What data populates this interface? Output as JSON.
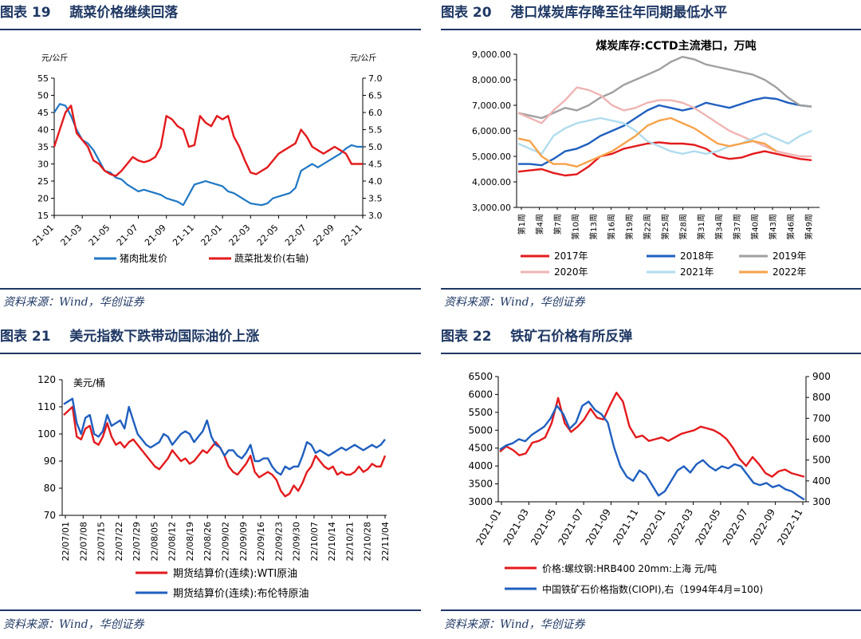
{
  "panels": [
    {
      "figure_label": "图表 19",
      "title": "蔬菜价格继续回落",
      "source": "资料来源：Wind，华创证券"
    },
    {
      "figure_label": "图表 20",
      "title": "港口煤炭库存降至往年同期最低水平",
      "source": "资料来源：Wind，华创证券"
    },
    {
      "figure_label": "图表 21",
      "title": "美元指数下跌带动国际油价上涨",
      "source": "资料来源：Wind，华创证券"
    },
    {
      "figure_label": "图表 22",
      "title": "铁矿石价格有所反弹",
      "source": "资料来源：Wind，华创证券"
    }
  ],
  "chart_data": [
    {
      "type": "line",
      "title": "",
      "ylabel_left": "元/公斤",
      "ylabel_right": "元/公斤",
      "ylim_left": [
        15,
        55
      ],
      "ylim_right": [
        3.0,
        7.0
      ],
      "yticks_left": [
        15,
        20,
        25,
        30,
        35,
        40,
        45,
        50,
        55
      ],
      "yticks_right": [
        "3.0",
        "3.5",
        "4.0",
        "4.5",
        "5.0",
        "5.5",
        "6.0",
        "6.5",
        "7.0"
      ],
      "xticks": [
        "21-01",
        "21-03",
        "21-05",
        "21-07",
        "21-09",
        "21-11",
        "22-01",
        "22-03",
        "22-05",
        "22-07",
        "22-09",
        "22-11"
      ],
      "series": [
        {
          "name": "猪肉批发价",
          "axis": "left",
          "color": "#1f77c4",
          "values": [
            45,
            47.5,
            47,
            44,
            40,
            37,
            36,
            34,
            31,
            28,
            27.5,
            26,
            25.5,
            24,
            23,
            22,
            22.5,
            22,
            21.5,
            21,
            20,
            19.5,
            19,
            18,
            21,
            24,
            24.5,
            25,
            24.5,
            24,
            23.5,
            22,
            21.5,
            20.5,
            19.5,
            18.5,
            18.2,
            18,
            18.5,
            20,
            20.5,
            21,
            21.5,
            23,
            28,
            29,
            30,
            29,
            30,
            31,
            32,
            33,
            34.5,
            35.5,
            35,
            35
          ]
        },
        {
          "name": "蔬菜批发价(右轴)",
          "axis": "right",
          "color": "#e31a1c",
          "values": [
            5.0,
            5.5,
            6.0,
            6.2,
            5.4,
            5.2,
            5.0,
            4.6,
            4.5,
            4.3,
            4.2,
            4.15,
            4.3,
            4.5,
            4.7,
            4.6,
            4.55,
            4.6,
            4.7,
            5.0,
            5.9,
            5.8,
            5.6,
            5.5,
            5.0,
            5.05,
            5.9,
            5.7,
            5.6,
            5.9,
            5.8,
            5.9,
            5.3,
            5.0,
            4.6,
            4.25,
            4.2,
            4.3,
            4.4,
            4.6,
            4.8,
            4.9,
            5.0,
            5.1,
            5.5,
            5.3,
            5.0,
            4.9,
            4.8,
            4.9,
            5.0,
            4.9,
            4.8,
            4.5,
            4.5,
            4.5
          ]
        }
      ],
      "legend": [
        "猪肉批发价",
        "蔬菜批发价(右轴)"
      ]
    },
    {
      "type": "line",
      "title": "煤炭库存:CCTD主流港口，万吨",
      "ylim": [
        3000,
        9000
      ],
      "yticks": [
        "3,000.00",
        "4,000.00",
        "5,000.00",
        "6,000.00",
        "7,000.00",
        "8,000.00",
        "9,000.00"
      ],
      "xticks": [
        "第1周",
        "第4周",
        "第7周",
        "第10周",
        "第13周",
        "第16周",
        "第19周",
        "第22周",
        "第25周",
        "第28周",
        "第31周",
        "第34周",
        "第37周",
        "第40周",
        "第43周",
        "第46周",
        "第49周"
      ],
      "series": [
        {
          "name": "2017年",
          "color": "#e31a1c",
          "values": [
            4400,
            4450,
            4500,
            4350,
            4250,
            4300,
            4600,
            5000,
            5100,
            5300,
            5400,
            5500,
            5550,
            5500,
            5500,
            5450,
            5300,
            5000,
            4900,
            4950,
            5100,
            5200,
            5100,
            5000,
            4900,
            4850
          ]
        },
        {
          "name": "2018年",
          "color": "#1f5fbf",
          "values": [
            4700,
            4700,
            4650,
            4900,
            5200,
            5300,
            5500,
            5800,
            6000,
            6200,
            6500,
            6800,
            7000,
            6900,
            6800,
            6900,
            7100,
            7000,
            6900,
            7050,
            7200,
            7300,
            7250,
            7100,
            7000,
            6950
          ]
        },
        {
          "name": "2019年",
          "color": "#a0a0a0",
          "values": [
            6700,
            6600,
            6500,
            6700,
            6900,
            6800,
            7000,
            7300,
            7500,
            7800,
            8000,
            8200,
            8400,
            8700,
            8900,
            8800,
            8600,
            8500,
            8400,
            8300,
            8200,
            8000,
            7700,
            7300,
            7000,
            6950
          ]
        },
        {
          "name": "2020年",
          "color": "#f0b4b4",
          "values": [
            6700,
            6500,
            6300,
            6800,
            7200,
            7700,
            7600,
            7400,
            7000,
            6800,
            6900,
            7100,
            7200,
            7200,
            7100,
            6900,
            6600,
            6300,
            6000,
            5800,
            5600,
            5400,
            5200,
            5100,
            5000,
            5000
          ]
        },
        {
          "name": "2021年",
          "color": "#b0dcee",
          "values": [
            5500,
            5300,
            5100,
            5800,
            6100,
            6300,
            6400,
            6500,
            6400,
            6300,
            6000,
            5600,
            5400,
            5200,
            5100,
            5200,
            5100,
            5200,
            5400,
            5500,
            5700,
            5900,
            5700,
            5500,
            5800,
            6000
          ]
        },
        {
          "name": "2022年",
          "color": "#f7a24a",
          "values": [
            5700,
            5600,
            5000,
            4700,
            4700,
            4600,
            4800,
            5000,
            5200,
            5500,
            5800,
            6200,
            6400,
            6500,
            6300,
            6100,
            5800,
            5500,
            5400,
            5500,
            5600,
            5500,
            5200
          ]
        }
      ],
      "legend": [
        "2017年",
        "2018年",
        "2019年",
        "2020年",
        "2021年",
        "2022年"
      ]
    },
    {
      "type": "line",
      "title": "",
      "ylabel": "美元/桶",
      "ylim": [
        70,
        120
      ],
      "yticks": [
        70,
        80,
        90,
        100,
        110,
        120
      ],
      "xticks": [
        "22/07/01",
        "22/07/08",
        "22/07/15",
        "22/07/22",
        "22/07/29",
        "22/08/05",
        "22/08/12",
        "22/08/19",
        "22/08/26",
        "22/09/02",
        "22/09/09",
        "22/09/16",
        "22/09/23",
        "22/09/30",
        "22/10/07",
        "22/10/14",
        "22/10/21",
        "22/10/28",
        "22/11/04"
      ],
      "series": [
        {
          "name": "期货结算价(连续):WTI原油",
          "color": "#e31a1c",
          "values": [
            107,
            108.5,
            110,
            99,
            98,
            102,
            103,
            97,
            96,
            99,
            104,
            99,
            96,
            97,
            95,
            97,
            98,
            96,
            94,
            92,
            90,
            88,
            87,
            89,
            91,
            94,
            92,
            90,
            91,
            89,
            90,
            92,
            94,
            93,
            95,
            97,
            95,
            92,
            88,
            86,
            85,
            87,
            89,
            92,
            86,
            84,
            85,
            86,
            85,
            83,
            79,
            77,
            78,
            81,
            79,
            82,
            86,
            88,
            92,
            90,
            88,
            87,
            88,
            85,
            86,
            85,
            85,
            86,
            88,
            86,
            87,
            89,
            88,
            88,
            92
          ]
        },
        {
          "name": "期货结算价(连续):布伦特原油",
          "color": "#1f5fbf",
          "values": [
            111,
            112,
            113,
            104,
            100,
            106,
            107,
            100,
            99,
            101,
            107,
            103,
            104,
            105,
            102,
            110,
            105,
            100,
            98,
            96,
            95,
            96,
            97,
            100,
            99,
            96,
            98,
            100,
            101,
            100,
            97,
            99,
            101,
            105,
            99,
            96,
            95,
            92,
            94,
            94,
            92,
            91,
            93,
            96,
            90,
            90,
            91,
            91,
            88,
            86,
            85,
            88,
            87,
            88,
            88,
            92,
            97,
            96,
            93,
            94,
            93,
            92,
            93,
            94,
            95,
            94,
            95,
            96,
            95,
            94,
            95,
            96,
            95,
            96,
            98
          ]
        }
      ],
      "legend": [
        "期货结算价(连续):WTI原油",
        "期货结算价(连续):布伦特原油"
      ]
    },
    {
      "type": "line",
      "title": "",
      "ylim_left": [
        3000,
        6500
      ],
      "ylim_right": [
        300,
        900
      ],
      "yticks_left": [
        3000,
        3500,
        4000,
        4500,
        5000,
        5500,
        6000,
        6500
      ],
      "yticks_right": [
        300,
        400,
        500,
        600,
        700,
        800,
        900
      ],
      "xticks": [
        "2021-01",
        "2021-03",
        "2021-05",
        "2021-07",
        "2021-09",
        "2021-11",
        "2022-01",
        "2022-03",
        "2022-05",
        "2022-07",
        "2022-09",
        "2022-11"
      ],
      "series": [
        {
          "name": "价格:螺纹钢:HRB400 20mm:上海 元/吨",
          "axis": "left",
          "color": "#e31a1c",
          "values": [
            4400,
            4550,
            4450,
            4300,
            4350,
            4650,
            4700,
            4800,
            5200,
            5900,
            5200,
            4950,
            5100,
            5300,
            5600,
            5350,
            5300,
            5700,
            6050,
            5800,
            5100,
            4800,
            4850,
            4700,
            4750,
            4800,
            4700,
            4800,
            4900,
            4950,
            5000,
            5100,
            5050,
            5000,
            4900,
            4750,
            4500,
            4200,
            4000,
            4250,
            4050,
            3800,
            3700,
            3850,
            3900,
            3800,
            3750,
            3700
          ]
        },
        {
          "name": "中国铁矿石价格指数(CIOPI),右（1994年4月=100)",
          "axis": "right",
          "color": "#1f5fbf",
          "values": [
            550,
            570,
            580,
            600,
            590,
            620,
            640,
            660,
            700,
            760,
            720,
            650,
            680,
            760,
            780,
            740,
            720,
            680,
            560,
            470,
            420,
            400,
            450,
            430,
            380,
            330,
            350,
            400,
            450,
            470,
            440,
            480,
            500,
            470,
            450,
            470,
            460,
            480,
            470,
            430,
            390,
            380,
            390,
            370,
            380,
            360,
            350,
            330,
            310
          ]
        }
      ],
      "legend": [
        "价格:螺纹钢:HRB400 20mm:上海 元/吨",
        "中国铁矿石价格指数(CIOPI),右（1994年4月=100)"
      ]
    }
  ]
}
